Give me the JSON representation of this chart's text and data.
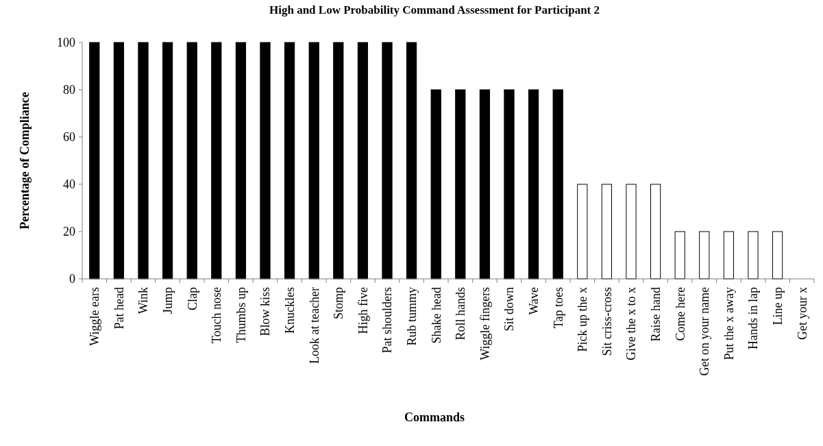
{
  "chart_data": {
    "type": "bar",
    "title": "High and Low Probability Command Assessment for Participant 2",
    "xlabel": "Commands",
    "ylabel": "Percentage of Compliance",
    "categories": [
      "Wiggle ears",
      "Pat head",
      "Wink",
      "Jump",
      "Clap",
      "Touch nose",
      "Thumbs up",
      "Blow kiss",
      "Knuckles",
      "Look at teacher",
      "Stomp",
      "High five",
      "Pat shoulders",
      "Rub tummy",
      "Shake head",
      "Roll hands",
      "Wiggle fingers",
      "Sit down",
      "Wave",
      "Tap toes",
      "Pick up the x",
      "Sit criss-cross",
      "Give the x to x",
      "Raise hand",
      "Come here",
      "Get on your name",
      "Put the x away",
      "Hands in lap",
      "Line up",
      "Get your x"
    ],
    "values": [
      100,
      100,
      100,
      100,
      100,
      100,
      100,
      100,
      100,
      100,
      100,
      100,
      100,
      100,
      80,
      80,
      80,
      80,
      80,
      80,
      40,
      40,
      40,
      40,
      20,
      20,
      20,
      20,
      20,
      0
    ],
    "colors": [
      "#000000",
      "#000000",
      "#000000",
      "#000000",
      "#000000",
      "#000000",
      "#000000",
      "#000000",
      "#000000",
      "#000000",
      "#000000",
      "#000000",
      "#000000",
      "#000000",
      "#000000",
      "#000000",
      "#000000",
      "#000000",
      "#000000",
      "#000000",
      "#ffffff",
      "#ffffff",
      "#ffffff",
      "#ffffff",
      "#ffffff",
      "#ffffff",
      "#ffffff",
      "#ffffff",
      "#ffffff",
      "#ffffff"
    ],
    "ylim": [
      0,
      100
    ],
    "yticks": [
      0,
      20,
      40,
      60,
      80,
      100
    ],
    "grid": false
  }
}
